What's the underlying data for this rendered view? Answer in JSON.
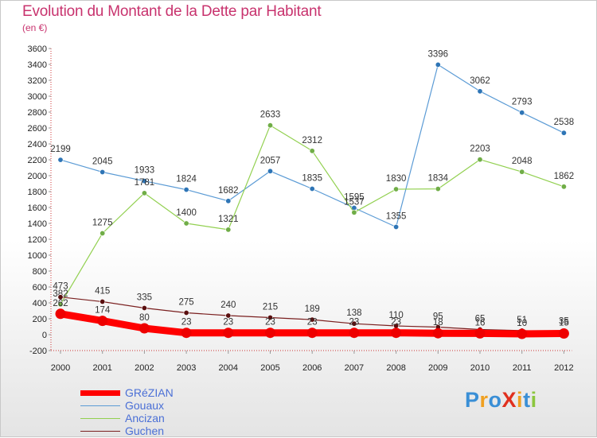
{
  "header": {
    "title": "Evolution du Montant de la Dette par Habitant",
    "subtitle": "(en €)"
  },
  "logo": {
    "text": "ProXiti",
    "letters": [
      "P",
      "r",
      "o",
      "X",
      "i",
      "t",
      "i"
    ],
    "colors": [
      "#3a8fd6",
      "#f0a020",
      "#3a8fd6",
      "#e0301e",
      "#f0a020",
      "#3a8fd6",
      "#8cc63f"
    ]
  },
  "chart_data": {
    "type": "line",
    "title": "Evolution du Montant de la Dette par Habitant",
    "ylabel": "(en €)",
    "xlabel": "",
    "x": [
      "2000",
      "2001",
      "2002",
      "2003",
      "2004",
      "2005",
      "2006",
      "2007",
      "2008",
      "2009",
      "2010",
      "2011",
      "2012"
    ],
    "ylim": [
      -200,
      3600
    ],
    "yticks": [
      -200,
      0,
      200,
      400,
      600,
      800,
      1000,
      1200,
      1400,
      1600,
      1800,
      2000,
      2200,
      2400,
      2600,
      2800,
      3000,
      3200,
      3400,
      3600
    ],
    "grid": false,
    "legend_position": "bottom-left",
    "series": [
      {
        "name": "Guchen",
        "color": "#7a1f1f",
        "marker": "#5a0f0f",
        "values": [
          473,
          415,
          335,
          275,
          240,
          215,
          189,
          138,
          110,
          95,
          65,
          51,
          35
        ],
        "labels": [
          "473",
          "415",
          "335",
          "275",
          "240",
          "215",
          "189",
          "138",
          "110",
          "95",
          "65",
          "51",
          "35"
        ]
      },
      {
        "name": "Gouaux",
        "color": "#5b9bd5",
        "marker": "#2e75b6",
        "values": [
          2199,
          2045,
          1933,
          1824,
          1682,
          2057,
          1835,
          1595,
          1355,
          3396,
          3062,
          2793,
          2538
        ],
        "labels": [
          "2199",
          "2045",
          "1933",
          "1824",
          "1682",
          "2057",
          "1835",
          "1595",
          "1355",
          "3396",
          "3062",
          "2793",
          "2538"
        ]
      },
      {
        "name": "Ancizan",
        "color": "#92d050",
        "marker": "#70ad47",
        "values": [
          382,
          1275,
          1781,
          1400,
          1321,
          2633,
          2312,
          1537,
          1830,
          1834,
          2203,
          2048,
          1862
        ],
        "labels": [
          "382",
          "1275",
          "1781",
          "1400",
          "1321",
          "2633",
          "2312",
          "1537",
          "1830",
          "1834",
          "2203",
          "2048",
          "1862"
        ]
      },
      {
        "name": "GRéZIAN",
        "color": "#ff0000",
        "marker": "#ee0000",
        "values": [
          262,
          174,
          80,
          23,
          23,
          23,
          23,
          23,
          23,
          18,
          16,
          10,
          15
        ],
        "labels": [
          "262",
          "174",
          "80",
          "23",
          "23",
          "23",
          "23",
          "23",
          "23",
          "18",
          "16",
          "10",
          "15"
        ]
      }
    ],
    "legend": [
      "GRéZIAN",
      "Gouaux",
      "Ancizan",
      "Guchen"
    ]
  }
}
